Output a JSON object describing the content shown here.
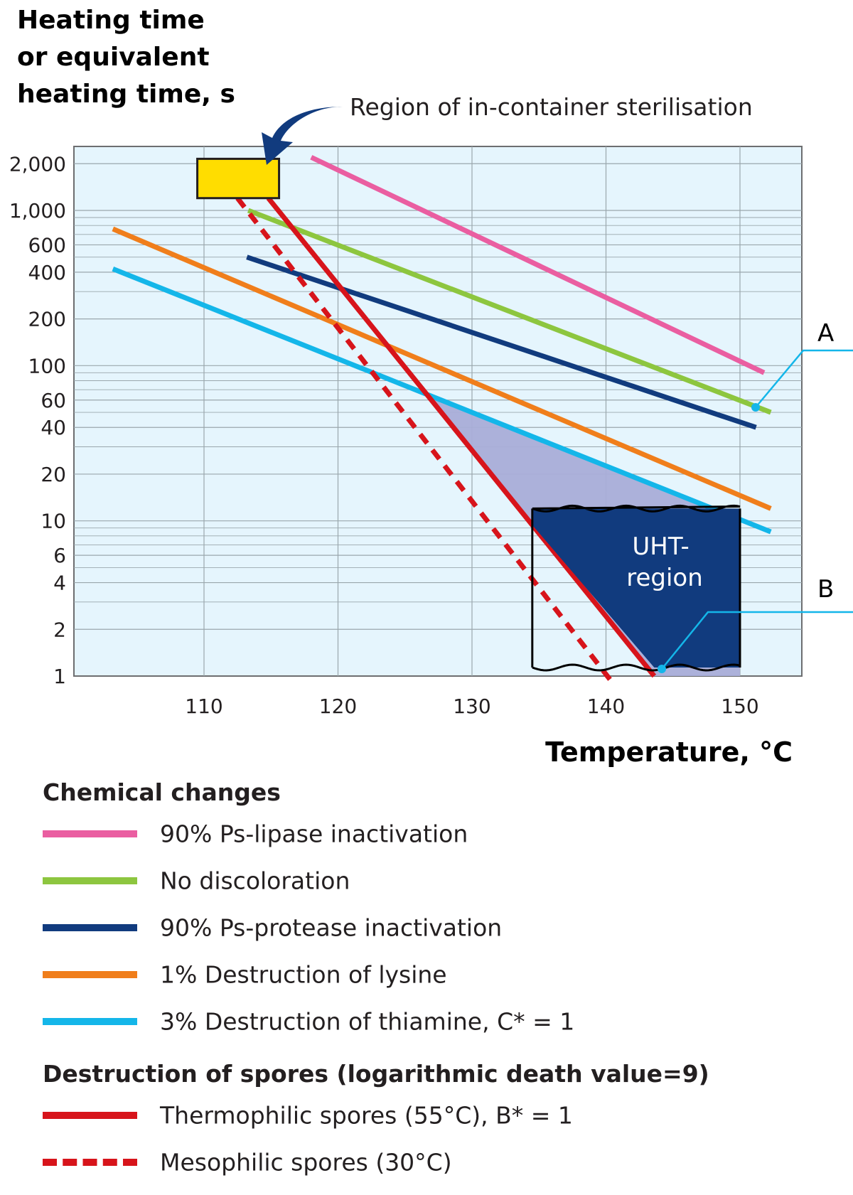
{
  "chart_data": {
    "type": "line",
    "title": "",
    "ylabel": [
      "Heating time",
      "or equivalent",
      "heating time, s"
    ],
    "xlabel": "Temperature, °C",
    "xlim": [
      100,
      153
    ],
    "ylim": [
      1,
      2800
    ],
    "yscale": "log",
    "x_ticks": [
      110,
      120,
      130,
      140,
      150
    ],
    "y_ticks": [
      {
        "value": 2000,
        "label": "2,000"
      },
      {
        "value": 1000,
        "label": "1,000"
      },
      {
        "value": 600,
        "label": "600"
      },
      {
        "value": 400,
        "label": "400"
      },
      {
        "value": 200,
        "label": "200"
      },
      {
        "value": 100,
        "label": "100"
      },
      {
        "value": 60,
        "label": "60"
      },
      {
        "value": 40,
        "label": "40"
      },
      {
        "value": 20,
        "label": "20"
      },
      {
        "value": 10,
        "label": "10"
      },
      {
        "value": 6,
        "label": "6"
      },
      {
        "value": 4,
        "label": "4"
      },
      {
        "value": 2,
        "label": "2"
      },
      {
        "value": 1,
        "label": "1"
      }
    ],
    "y_minor_grid": [
      3000,
      900,
      800,
      700,
      500,
      300,
      90,
      80,
      70,
      50,
      30,
      9,
      8,
      7,
      5,
      3
    ],
    "series": [
      {
        "id": "lipase",
        "name": "90% Ps-lipase inactivation",
        "color": "#ea5ea1",
        "dashed": false,
        "points": [
          [
            118,
            2200
          ],
          [
            151.8,
            90
          ]
        ]
      },
      {
        "id": "discoloration",
        "name": "No discoloration",
        "color": "#8dc63f",
        "dashed": false,
        "points": [
          [
            113.3,
            1000
          ],
          [
            152.3,
            50
          ]
        ]
      },
      {
        "id": "protease",
        "name": "90% Ps-protease inactivation",
        "color": "#113b7e",
        "dashed": false,
        "points": [
          [
            113.2,
            500
          ],
          [
            151.2,
            40
          ]
        ]
      },
      {
        "id": "lysine",
        "name": "1% Destruction of lysine",
        "color": "#f07e1b",
        "dashed": false,
        "points": [
          [
            103.2,
            760
          ],
          [
            152.3,
            12
          ]
        ]
      },
      {
        "id": "thiamine",
        "name": "3% Destruction of thiamine, C* = 1",
        "color": "#14b6e9",
        "dashed": false,
        "points": [
          [
            103.2,
            420
          ],
          [
            152.3,
            8.5
          ]
        ]
      },
      {
        "id": "thermophilic",
        "name": "Thermophilic spores (55°C), B* = 1",
        "color": "#d7141b",
        "dashed": false,
        "points": [
          [
            114.8,
            1200
          ],
          [
            143.6,
            1
          ]
        ]
      },
      {
        "id": "mesophilic",
        "name": "Mesophilic spores (30°C)",
        "color": "#d7141b",
        "dashed": true,
        "points": [
          [
            112.5,
            1200
          ],
          [
            140.3,
            0.95
          ]
        ]
      }
    ],
    "annotations": [
      {
        "id": "sterilisation",
        "text": "Region of in-container sterilisation"
      },
      {
        "id": "uht",
        "text": [
          "UHT-",
          "region"
        ]
      },
      {
        "id": "A",
        "text": "A"
      },
      {
        "id": "B",
        "text": "B"
      }
    ],
    "regions": {
      "sterilisation_box": {
        "x": [
          109.5,
          115.6
        ],
        "y": [
          1200,
          2150
        ],
        "color": "#ffdd00"
      },
      "uht_box": {
        "x": [
          134.5,
          150
        ],
        "y": [
          1,
          12
        ],
        "color": "#113b7e"
      },
      "shaded_fill": "#a9add8"
    },
    "colors": {
      "plot_bg": "#e5f5fd",
      "grid": "#9aa7ad",
      "arrow": "#113b7e"
    }
  },
  "legend": {
    "chemical_heading": "Chemical changes",
    "chemical": [
      {
        "label": "90% Ps-lipase inactivation",
        "color": "#ea5ea1"
      },
      {
        "label": "No discoloration",
        "color": "#8dc63f"
      },
      {
        "label": "90% Ps-protease inactivation",
        "color": "#113b7e"
      },
      {
        "label": "1% Destruction of lysine",
        "color": "#f07e1b"
      },
      {
        "label": "3% Destruction of thiamine, C* = 1",
        "color": "#14b6e9"
      }
    ],
    "spores_heading": "Destruction of spores (logarithmic death value=9)",
    "spores": [
      {
        "label": "Thermophilic spores (55°C), B* = 1",
        "color": "#d7141b"
      },
      {
        "label": "Mesophilic spores (30°C)",
        "color": "#d7141b"
      }
    ]
  }
}
